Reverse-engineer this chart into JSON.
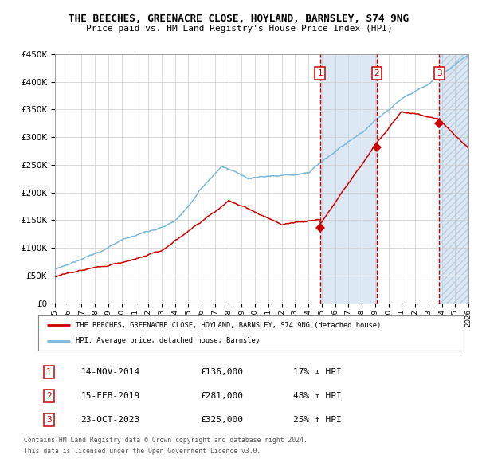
{
  "title": "THE BEECHES, GREENACRE CLOSE, HOYLAND, BARNSLEY, S74 9NG",
  "subtitle": "Price paid vs. HM Land Registry's House Price Index (HPI)",
  "legend_line1": "THE BEECHES, GREENACRE CLOSE, HOYLAND, BARNSLEY, S74 9NG (detached house)",
  "legend_line2": "HPI: Average price, detached house, Barnsley",
  "transactions": [
    {
      "id": 1,
      "date": "14-NOV-2014",
      "year": 2014.87,
      "price": 136000,
      "label": "17% ↓ HPI"
    },
    {
      "id": 2,
      "date": "15-FEB-2019",
      "year": 2019.12,
      "price": 281000,
      "label": "48% ↑ HPI"
    },
    {
      "id": 3,
      "date": "23-OCT-2023",
      "year": 2023.81,
      "price": 325000,
      "label": "25% ↑ HPI"
    }
  ],
  "hpi_color": "#7ab8d9",
  "price_color": "#cc0000",
  "marker_color": "#cc0000",
  "vline_color": "#cc0000",
  "shade_color": "#dce9f5",
  "hatch_color": "#b8cfe0",
  "grid_color": "#cccccc",
  "background_color": "#ffffff",
  "xlim": [
    1995,
    2026
  ],
  "ylim": [
    0,
    450000
  ],
  "yticks": [
    0,
    50000,
    100000,
    150000,
    200000,
    250000,
    300000,
    350000,
    400000,
    450000
  ],
  "footer_line1": "Contains HM Land Registry data © Crown copyright and database right 2024.",
  "footer_line2": "This data is licensed under the Open Government Licence v3.0."
}
